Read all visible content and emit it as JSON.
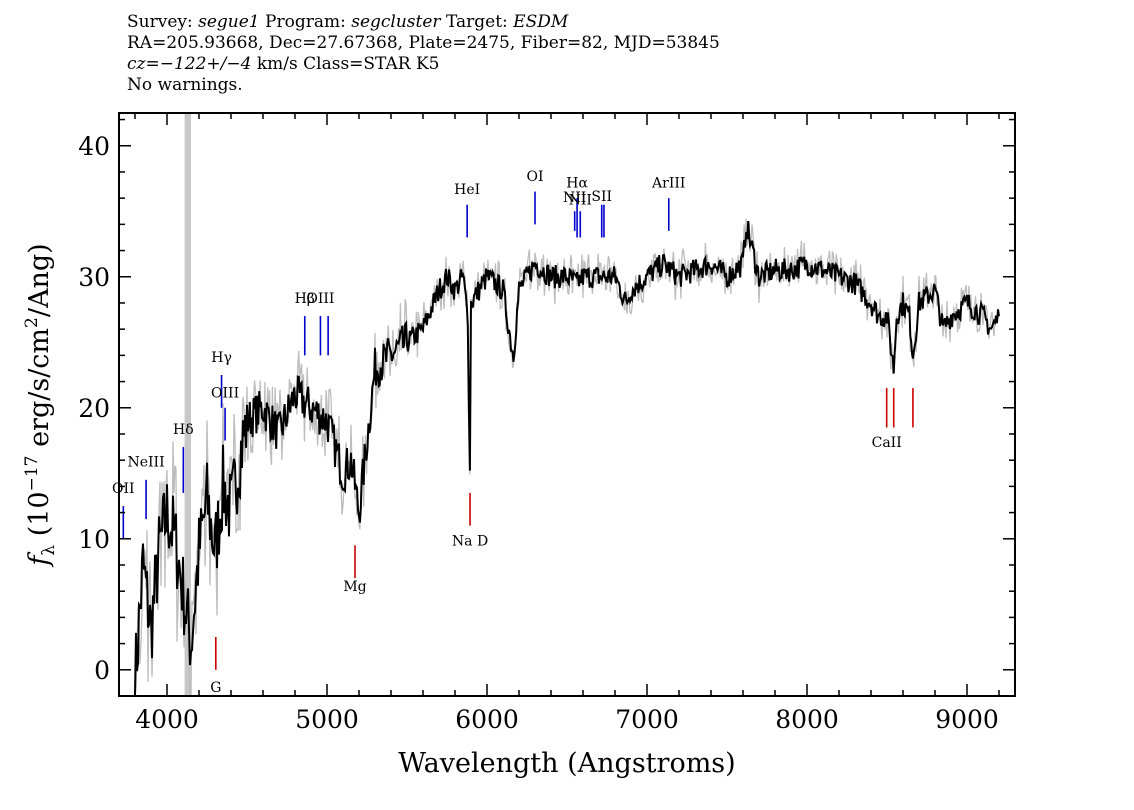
{
  "header": {
    "line1": {
      "survey_label": "Survey:",
      "survey": "segue1",
      "program_label": "Program:",
      "program": "segcluster",
      "target_label": "Target:",
      "target": "ESDM"
    },
    "line2": "RA=205.93668, Dec=27.67368, Plate=2475, Fiber=82, MJD=53845",
    "line3": {
      "cz": "cz=−122+/−4",
      "rest": "km/s Class=STAR K5"
    },
    "line4": "No warnings."
  },
  "chart_data": {
    "type": "line",
    "xlabel": "Wavelength (Angstroms)",
    "ylabel_prefix": "f",
    "ylabel_sub": "λ",
    "ylabel_main": "(10",
    "ylabel_exp1": "−17",
    "ylabel_mid": "erg/s/cm",
    "ylabel_exp2": "2",
    "ylabel_end": "/Ang)",
    "xlim": [
      3700,
      9300
    ],
    "ylim": [
      -2,
      42.5
    ],
    "xticks": [
      4000,
      5000,
      6000,
      7000,
      8000,
      9000
    ],
    "yticks": [
      0,
      10,
      20,
      30,
      40
    ],
    "masked_region": [
      4110,
      4150
    ],
    "series": [
      {
        "color": "#000000",
        "x": [
          3800,
          3850,
          3900,
          3950,
          4000,
          4050,
          4100,
          4150,
          4200,
          4250,
          4300,
          4350,
          4400,
          4450,
          4500,
          4600,
          4700,
          4800,
          4900,
          5000,
          5050,
          5100,
          5150,
          5200,
          5300,
          5400,
          5500,
          5600,
          5700,
          5750,
          5800,
          5850,
          5880,
          5893,
          5900,
          5950,
          6000,
          6100,
          6150,
          6165,
          6200,
          6300,
          6400,
          6500,
          6563,
          6600,
          6700,
          6800,
          6870,
          6900,
          7000,
          7100,
          7200,
          7300,
          7400,
          7500,
          7600,
          7620,
          7700,
          7800,
          7900,
          8000,
          8100,
          8200,
          8300,
          8400,
          8450,
          8500,
          8542,
          8560,
          8600,
          8640,
          8662,
          8700,
          8800,
          8850,
          8900,
          9000,
          9100,
          9150,
          9200
        ],
        "y": [
          -1,
          8,
          3,
          9,
          12,
          10,
          6,
          2,
          9,
          13,
          9,
          14,
          12,
          16,
          19,
          20,
          18,
          21,
          20,
          19,
          17,
          15,
          16,
          12,
          23,
          24,
          25,
          26,
          29,
          30,
          29,
          30,
          27,
          15,
          28,
          29,
          30,
          29,
          25,
          24,
          29,
          31,
          30,
          30,
          29.5,
          30,
          30,
          30,
          28,
          29,
          30,
          31,
          30,
          30.5,
          31,
          30,
          31,
          34,
          30,
          30.5,
          30.5,
          31,
          30.5,
          30,
          29.5,
          28,
          27,
          27,
          23,
          27,
          28,
          27,
          24,
          28,
          29,
          26,
          27,
          28,
          27,
          26,
          27
        ]
      }
    ],
    "emission_lines": [
      {
        "label": "OII",
        "x": 3727,
        "y1": 10,
        "y2": 12.5,
        "label_y": 13.5,
        "color": "#0000cc"
      },
      {
        "label": "NeIII",
        "x": 3869,
        "y1": 11.5,
        "y2": 14.5,
        "label_y": 15.5,
        "color": "#0000cc"
      },
      {
        "label": "Hδ",
        "x": 4102,
        "y1": 13.5,
        "y2": 17,
        "label_y": 18,
        "color": "#0000cc"
      },
      {
        "label": "Hγ",
        "x": 4341,
        "y1": 20,
        "y2": 22.5,
        "label_y": 23.5,
        "color": "#0000cc"
      },
      {
        "label": "OIII",
        "x": 4363,
        "y1": 17.5,
        "y2": 20,
        "label_y": 20.8,
        "color": "#0000cc"
      },
      {
        "label": "Hβ",
        "x": 4861,
        "y1": 24,
        "y2": 27,
        "label_y": 28,
        "color": "#0000cc"
      },
      {
        "label": "OIII",
        "x": 4959,
        "y1": 24,
        "y2": 27,
        "label_y": 28,
        "color": "#0000cc"
      },
      {
        "label": "",
        "x": 5007,
        "y1": 24,
        "y2": 27,
        "label_y": 28,
        "color": "#0000cc"
      },
      {
        "label": "HeI",
        "x": 5876,
        "y1": 33,
        "y2": 35.5,
        "label_y": 36.3,
        "color": "#0000cc"
      },
      {
        "label": "OI",
        "x": 6300,
        "y1": 34,
        "y2": 36.5,
        "label_y": 37.3,
        "color": "#0000cc"
      },
      {
        "label": "NII",
        "x": 6548,
        "y1": 33.5,
        "y2": 35,
        "label_y": 35.7,
        "color": "#0000cc"
      },
      {
        "label": "Hα",
        "x": 6563,
        "y1": 33,
        "y2": 36,
        "label_y": 36.8,
        "color": "#0000cc"
      },
      {
        "label": "NII",
        "x": 6583,
        "y1": 33,
        "y2": 35,
        "label_y": 35.5,
        "color": "#0000cc"
      },
      {
        "label": "SII",
        "x": 6717,
        "y1": 33,
        "y2": 35.5,
        "label_y": 35.8,
        "color": "#0000cc"
      },
      {
        "label": "",
        "x": 6731,
        "y1": 33,
        "y2": 35.5,
        "label_y": 35.8,
        "color": "#0000cc"
      },
      {
        "label": "ArIII",
        "x": 7136,
        "y1": 33.5,
        "y2": 36,
        "label_y": 36.8,
        "color": "#0000cc"
      }
    ],
    "absorption_lines": [
      {
        "label": "G",
        "x": 4305,
        "y1": 0,
        "y2": 2.5,
        "label_y": -1.7,
        "color": "#cc0000"
      },
      {
        "label": "Mg",
        "x": 5175,
        "y1": 7,
        "y2": 9.5,
        "label_y": 6,
        "color": "#cc0000"
      },
      {
        "label": "Na D",
        "x": 5894,
        "y1": 11,
        "y2": 13.5,
        "label_y": 9.5,
        "color": "#cc0000"
      },
      {
        "label": "CaII",
        "x": 8498,
        "y1": 18.5,
        "y2": 21.5,
        "label_y": 17,
        "color": "#cc0000"
      },
      {
        "label": "",
        "x": 8542,
        "y1": 18.5,
        "y2": 21.5,
        "label_y": 17,
        "color": "#cc0000"
      },
      {
        "label": "",
        "x": 8662,
        "y1": 18.5,
        "y2": 21.5,
        "label_y": 17,
        "color": "#cc0000"
      }
    ]
  }
}
